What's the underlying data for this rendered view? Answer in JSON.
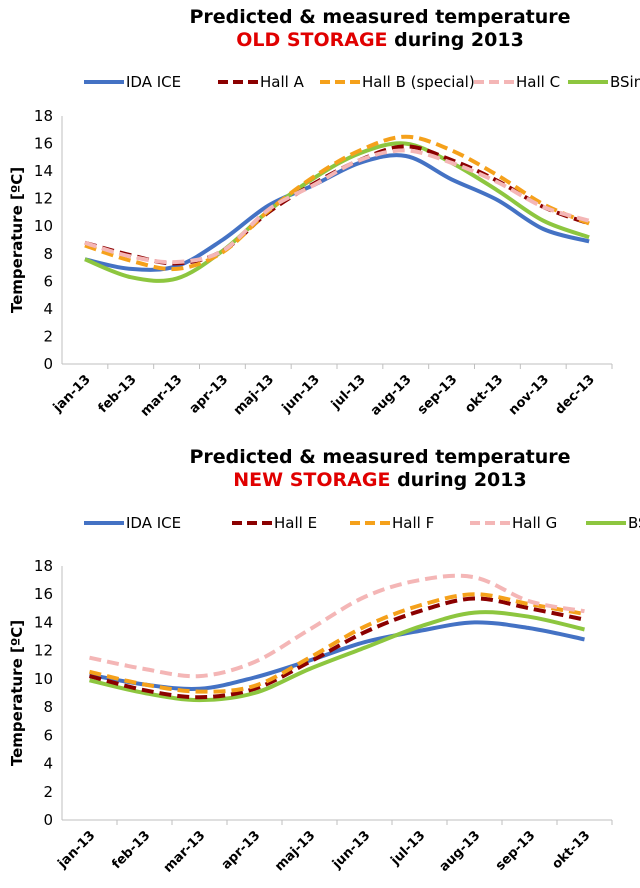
{
  "charts": [
    {
      "title_line1": "Predicted & measured temperature",
      "title_highlight": "OLD STORAGE",
      "title_rest": " during 2013"
    },
    {
      "title_line1": "Predicted & measured temperature",
      "title_highlight": "NEW STORAGE",
      "title_rest": " during 2013"
    }
  ],
  "colors": {
    "highlight": "#e00000",
    "ida_ice": "#4472c4",
    "hall_dark_red": "#8b0000",
    "hall_orange": "#f5a11b",
    "hall_pink": "#f4b6b6",
    "bsim": "#8dc63f"
  },
  "chart_data": [
    {
      "type": "line",
      "title": "Predicted & measured temperature OLD STORAGE during 2013",
      "ylabel": "Temperature [ºC]",
      "xlabel": "",
      "ylim": [
        0,
        18
      ],
      "yticks": [
        0,
        2,
        4,
        6,
        8,
        10,
        12,
        14,
        16,
        18
      ],
      "grid": false,
      "legend": "top",
      "categories": [
        "jan-13",
        "feb-13",
        "mar-13",
        "apr-13",
        "maj-13",
        "jun-13",
        "jul-13",
        "aug-13",
        "sep-13",
        "okt-13",
        "nov-13",
        "dec-13"
      ],
      "series": [
        {
          "name": "IDA ICE",
          "style": "solid",
          "color": "#4472c4",
          "values": [
            7.6,
            6.9,
            7.1,
            9.0,
            11.5,
            13.0,
            14.6,
            15.1,
            13.4,
            11.9,
            9.8,
            8.9
          ]
        },
        {
          "name": "Hall A",
          "style": "dashed",
          "color": "#8b0000",
          "values": [
            8.8,
            7.9,
            7.3,
            8.2,
            11.0,
            13.1,
            14.8,
            15.8,
            14.8,
            13.3,
            11.4,
            10.2
          ]
        },
        {
          "name": "Hall B (special)",
          "style": "dashed",
          "color": "#f5a11b",
          "values": [
            8.6,
            7.5,
            6.9,
            8.1,
            11.1,
            13.6,
            15.5,
            16.5,
            15.5,
            13.7,
            11.6,
            10.2
          ]
        },
        {
          "name": "Hall C",
          "style": "dashed",
          "color": "#f4b6b6",
          "values": [
            8.8,
            7.8,
            7.4,
            8.2,
            11.2,
            13.0,
            14.8,
            15.5,
            14.6,
            13.2,
            11.4,
            10.4
          ]
        },
        {
          "name": "BSim",
          "style": "solid",
          "color": "#8dc63f",
          "values": [
            7.6,
            6.3,
            6.2,
            8.2,
            11.1,
            13.5,
            15.3,
            16.0,
            14.6,
            12.6,
            10.4,
            9.2
          ]
        }
      ]
    },
    {
      "type": "line",
      "title": "Predicted & measured temperature NEW STORAGE during 2013",
      "ylabel": "Temperature [ºC]",
      "xlabel": "",
      "ylim": [
        0,
        18
      ],
      "yticks": [
        0,
        2,
        4,
        6,
        8,
        10,
        12,
        14,
        16,
        18
      ],
      "grid": false,
      "legend": "top",
      "categories": [
        "jan-13",
        "feb-13",
        "mar-13",
        "apr-13",
        "maj-13",
        "jun-13",
        "jul-13",
        "aug-13",
        "sep-13",
        "okt-13"
      ],
      "series": [
        {
          "name": "IDA ICE",
          "style": "solid",
          "color": "#4472c4",
          "values": [
            10.3,
            9.6,
            9.3,
            10.1,
            11.3,
            12.6,
            13.4,
            14.0,
            13.6,
            12.8
          ]
        },
        {
          "name": "Hall E",
          "style": "dashed",
          "color": "#8b0000",
          "values": [
            10.2,
            9.2,
            8.7,
            9.3,
            11.2,
            13.3,
            14.8,
            15.7,
            15.0,
            14.2
          ]
        },
        {
          "name": "Hall F",
          "style": "dashed",
          "color": "#f5a11b",
          "values": [
            10.5,
            9.6,
            9.1,
            9.5,
            11.5,
            13.7,
            15.2,
            16.0,
            15.3,
            14.6
          ]
        },
        {
          "name": "Hall G",
          "style": "dashed",
          "color": "#f4b6b6",
          "values": [
            11.5,
            10.7,
            10.2,
            11.2,
            13.5,
            15.8,
            17.0,
            17.2,
            15.5,
            14.8
          ]
        },
        {
          "name": "BSim",
          "style": "solid",
          "color": "#8dc63f",
          "values": [
            9.9,
            9.0,
            8.5,
            9.0,
            10.7,
            12.2,
            13.7,
            14.7,
            14.4,
            13.5
          ]
        }
      ]
    }
  ]
}
